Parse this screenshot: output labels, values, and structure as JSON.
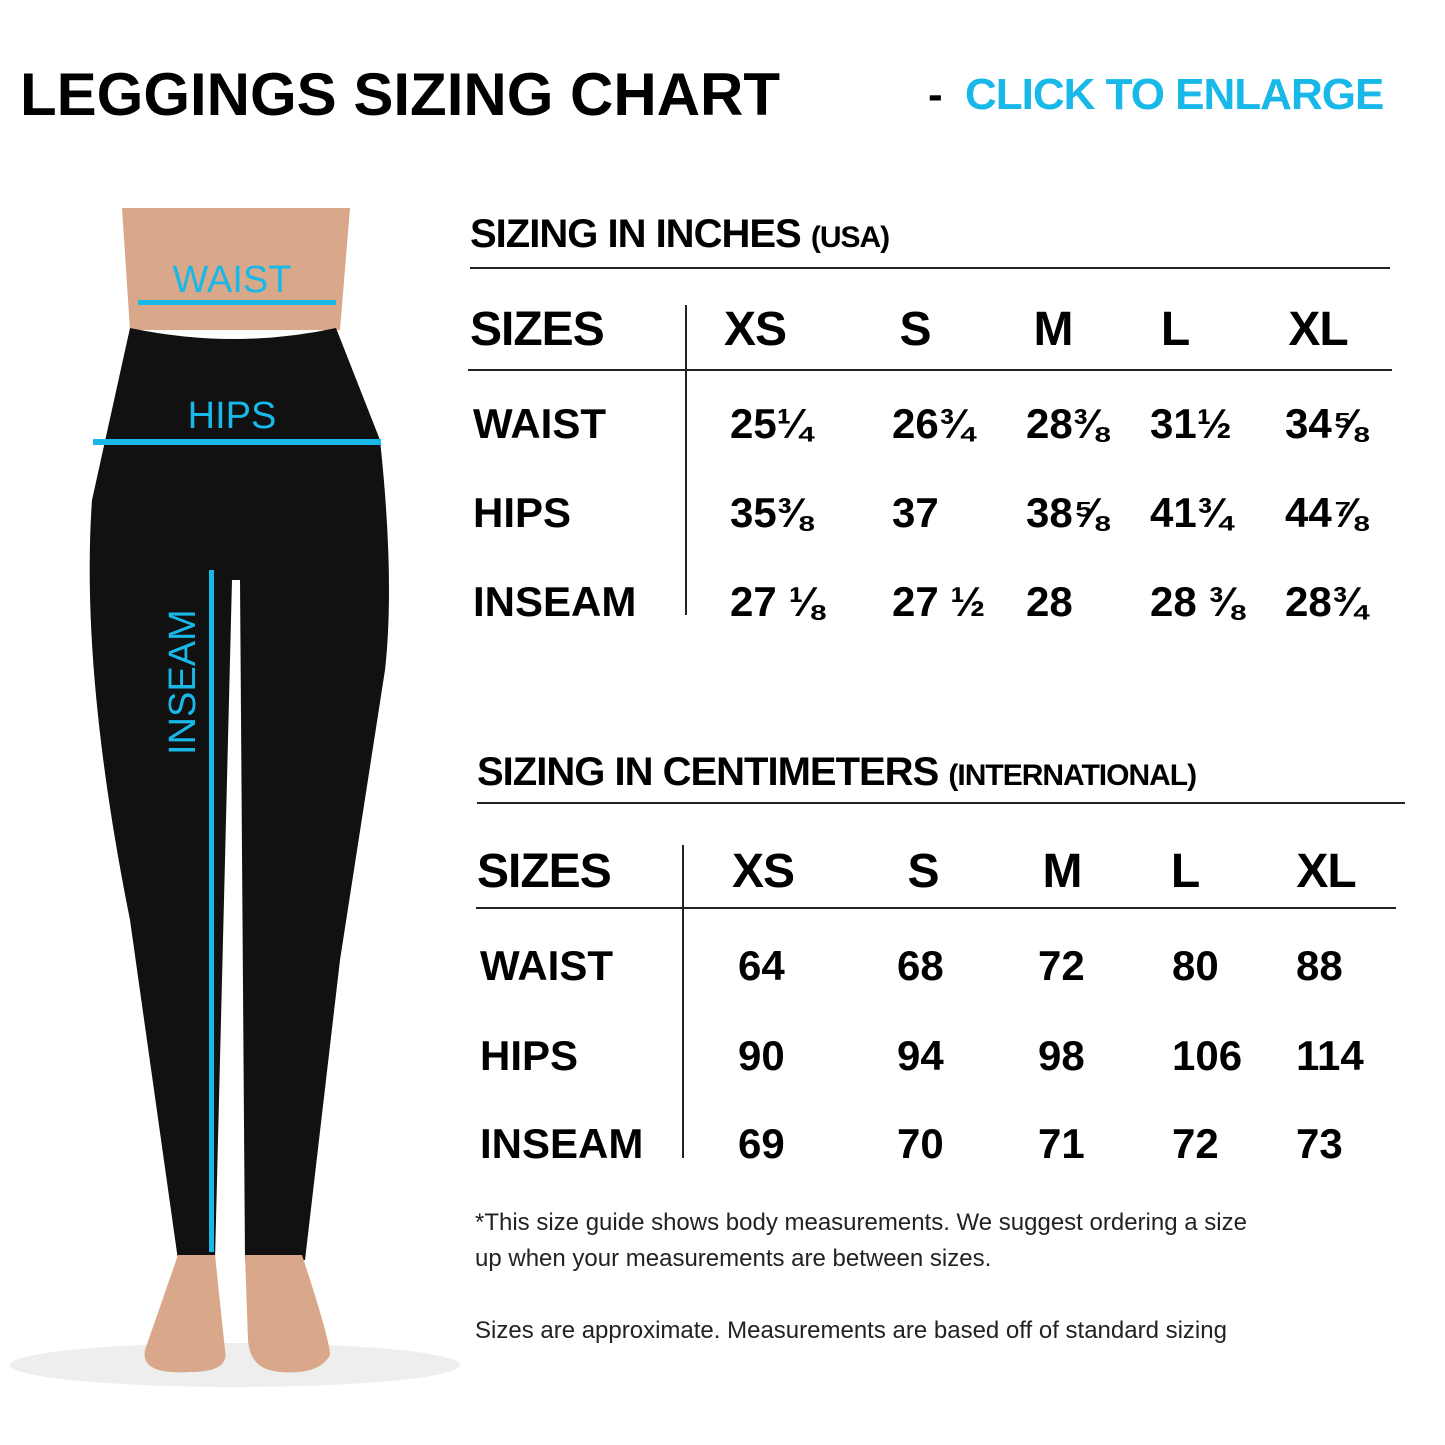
{
  "title": {
    "main": "LEGGINGS SIZING CHART",
    "separator": "-",
    "link": "CLICK TO ENLARGE"
  },
  "accent_color": "#18b8e8",
  "figure": {
    "labels": {
      "waist": "WAIST",
      "hips": "HIPS",
      "inseam": "INSEAM"
    }
  },
  "inches": {
    "heading": "SIZING IN INCHES",
    "heading_sub": "(USA)",
    "size_label": "SIZES",
    "sizes": [
      "XS",
      "S",
      "M",
      "L",
      "XL"
    ],
    "rows": [
      {
        "label": "WAIST",
        "values": [
          "25¼",
          "26¾",
          "28⅜",
          "31½",
          "34⅝"
        ]
      },
      {
        "label": "HIPS",
        "values": [
          "35⅜",
          "37",
          "38⅝",
          "41¾",
          "44⅞"
        ]
      },
      {
        "label": "INSEAM",
        "values": [
          "27 ⅛",
          "27 ½",
          "28",
          "28 ⅜",
          "28¾"
        ]
      }
    ]
  },
  "centimeters": {
    "heading": "SIZING IN CENTIMETERS",
    "heading_sub": "(INTERNATIONAL)",
    "size_label": "SIZES",
    "sizes": [
      "XS",
      "S",
      "M",
      "L",
      "XL"
    ],
    "rows": [
      {
        "label": "WAIST",
        "values": [
          "64",
          "68",
          "72",
          "80",
          "88"
        ]
      },
      {
        "label": "HIPS",
        "values": [
          "90",
          "94",
          "98",
          "106",
          "114"
        ]
      },
      {
        "label": "INSEAM",
        "values": [
          "69",
          "70",
          "71",
          "72",
          "73"
        ]
      }
    ]
  },
  "notes": {
    "line1": "*This size guide shows body measurements. We suggest ordering a size",
    "line2": "up when your measurements are between sizes.",
    "line3": "Sizes are approximate. Measurements are based off of standard sizing"
  }
}
